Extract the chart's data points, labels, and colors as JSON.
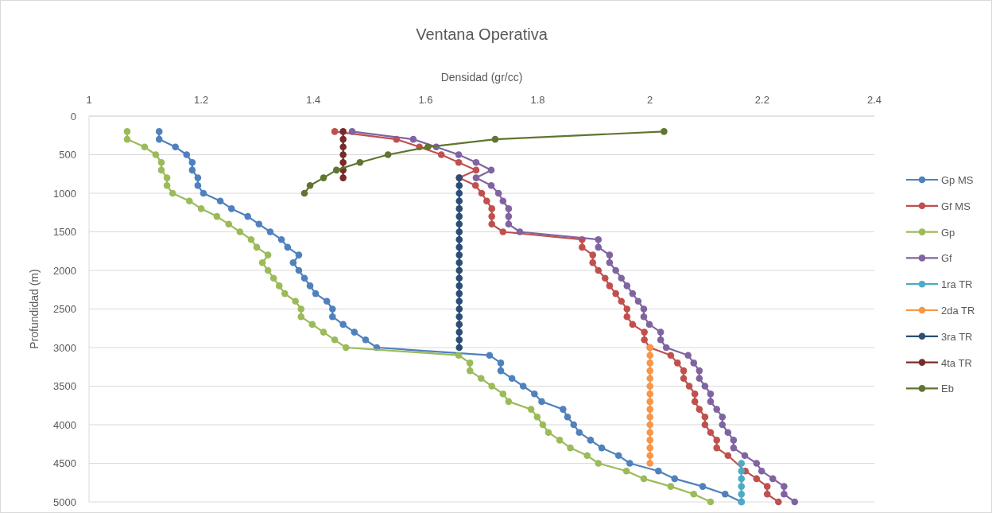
{
  "chart_data": {
    "type": "line",
    "title": "Ventana Operativa",
    "xlabel": "Densidad (gr/cc)",
    "ylabel": "Profundidad (m)",
    "xlim": [
      1,
      2.4
    ],
    "xticks": [
      1,
      1.2,
      1.4,
      1.6,
      1.8,
      2,
      2.2,
      2.4
    ],
    "ylim": [
      5000,
      0
    ],
    "yticks": [
      0,
      500,
      1000,
      1500,
      2000,
      2500,
      3000,
      3500,
      4000,
      4500,
      5000
    ],
    "grid": "y",
    "legend": "right",
    "marker": "circle",
    "line_style": "solid",
    "series": [
      {
        "name": "Gp MS",
        "color": "#4f81bd",
        "x": [
          1.125,
          1.125,
          1.154,
          1.174,
          1.184,
          1.184,
          1.194,
          1.194,
          1.204,
          1.234,
          1.254,
          1.283,
          1.303,
          1.323,
          1.343,
          1.354,
          1.374,
          1.364,
          1.374,
          1.384,
          1.394,
          1.404,
          1.424,
          1.434,
          1.434,
          1.453,
          1.473,
          1.493,
          1.513,
          1.714,
          1.734,
          1.734,
          1.754,
          1.774,
          1.794,
          1.807,
          1.845,
          1.853,
          1.864,
          1.874,
          1.894,
          1.914,
          1.944,
          1.964,
          2.015,
          2.044,
          2.094,
          2.134,
          2.163
        ],
        "values": [
          200,
          300,
          400,
          500,
          600,
          700,
          800,
          900,
          1000,
          1100,
          1200,
          1300,
          1400,
          1500,
          1600,
          1700,
          1800,
          1900,
          2000,
          2100,
          2200,
          2300,
          2400,
          2500,
          2600,
          2700,
          2800,
          2900,
          3000,
          3100,
          3200,
          3300,
          3400,
          3500,
          3600,
          3700,
          3800,
          3900,
          4000,
          4100,
          4200,
          4300,
          4400,
          4500,
          4600,
          4700,
          4800,
          4900,
          5000
        ]
      },
      {
        "name": "Gf MS",
        "color": "#c0504d",
        "x": [
          1.438,
          1.548,
          1.589,
          1.628,
          1.659,
          1.69,
          1.66,
          1.689,
          1.7,
          1.709,
          1.718,
          1.718,
          1.718,
          1.738,
          1.879,
          1.879,
          1.898,
          1.898,
          1.908,
          1.92,
          1.928,
          1.939,
          1.949,
          1.959,
          1.959,
          1.969,
          1.99,
          1.99,
          2.0,
          2.037,
          2.049,
          2.06,
          2.06,
          2.07,
          2.08,
          2.08,
          2.088,
          2.098,
          2.098,
          2.108,
          2.119,
          2.119,
          2.139,
          2.16,
          2.17,
          2.19,
          2.209,
          2.209,
          2.229
        ],
        "values": [
          200,
          300,
          400,
          500,
          600,
          700,
          800,
          900,
          1000,
          1100,
          1200,
          1300,
          1400,
          1500,
          1600,
          1700,
          1800,
          1900,
          2000,
          2100,
          2200,
          2300,
          2400,
          2500,
          2600,
          2700,
          2800,
          2900,
          3000,
          3100,
          3200,
          3300,
          3400,
          3500,
          3600,
          3700,
          3800,
          3900,
          4000,
          4100,
          4200,
          4300,
          4400,
          null,
          4600,
          4700,
          4800,
          4900,
          5000
        ]
      },
      {
        "name": "Gp",
        "color": "#9bbb59",
        "x": [
          1.068,
          1.068,
          1.099,
          1.119,
          1.129,
          1.129,
          1.139,
          1.139,
          1.149,
          1.179,
          1.2,
          1.228,
          1.249,
          1.269,
          1.289,
          1.299,
          1.319,
          1.309,
          1.319,
          1.329,
          1.339,
          1.349,
          1.368,
          1.378,
          1.378,
          1.398,
          1.418,
          1.438,
          1.458,
          1.659,
          1.679,
          1.679,
          1.699,
          1.718,
          1.738,
          1.748,
          1.788,
          1.799,
          1.809,
          1.819,
          1.839,
          1.858,
          1.888,
          1.908,
          1.958,
          1.989,
          2.037,
          2.078,
          2.108
        ],
        "values": [
          200,
          300,
          400,
          500,
          600,
          700,
          800,
          900,
          1000,
          1100,
          1200,
          1300,
          1400,
          1500,
          1600,
          1700,
          1800,
          1900,
          2000,
          2100,
          2200,
          2300,
          2400,
          2500,
          2600,
          2700,
          2800,
          2900,
          3000,
          3100,
          3200,
          3300,
          3400,
          3500,
          3600,
          3700,
          3800,
          3900,
          4000,
          4100,
          4200,
          4300,
          4400,
          4500,
          4600,
          4700,
          4800,
          4900,
          5000
        ]
      },
      {
        "name": "Gf",
        "color": "#8064a2",
        "x": [
          1.469,
          1.578,
          1.619,
          1.659,
          1.69,
          1.717,
          1.69,
          1.717,
          1.73,
          1.738,
          1.748,
          1.748,
          1.748,
          1.768,
          1.908,
          1.908,
          1.928,
          1.928,
          1.939,
          1.949,
          1.959,
          1.969,
          1.979,
          1.989,
          1.989,
          1.999,
          2.019,
          2.019,
          2.029,
          2.068,
          2.078,
          2.088,
          2.088,
          2.098,
          2.108,
          2.108,
          2.119,
          2.129,
          2.129,
          2.139,
          2.149,
          2.149,
          2.169,
          2.19,
          2.199,
          2.219,
          2.239,
          2.239,
          2.258
        ],
        "values": [
          200,
          300,
          400,
          500,
          600,
          700,
          800,
          900,
          1000,
          1100,
          1200,
          1300,
          1400,
          1500,
          1600,
          1700,
          1800,
          1900,
          2000,
          2100,
          2200,
          2300,
          2400,
          2500,
          2600,
          2700,
          2800,
          2900,
          3000,
          3100,
          3200,
          3300,
          3400,
          3500,
          3600,
          3700,
          3800,
          3900,
          4000,
          4100,
          4200,
          4300,
          4400,
          4500,
          4600,
          4700,
          4800,
          4900,
          5000
        ]
      },
      {
        "name": "1ra TR",
        "color": "#4bacc6",
        "x": [
          2.163,
          2.163,
          2.163,
          2.163,
          2.163,
          2.163
        ],
        "values": [
          4500,
          4600,
          4700,
          4800,
          4900,
          5000
        ]
      },
      {
        "name": "2da TR",
        "color": "#f79646",
        "x": [
          2.0,
          2.0,
          2.0,
          2.0,
          2.0,
          2.0,
          2.0,
          2.0,
          2.0,
          2.0,
          2.0,
          2.0,
          2.0,
          2.0,
          2.0,
          2.0
        ],
        "values": [
          3000,
          3100,
          3200,
          3300,
          3400,
          3500,
          3600,
          3700,
          3800,
          3900,
          4000,
          4100,
          4200,
          4300,
          4400,
          4500
        ]
      },
      {
        "name": "3ra TR",
        "color": "#2c4d75",
        "x": [
          1.66,
          1.66,
          1.66,
          1.66,
          1.66,
          1.66,
          1.66,
          1.66,
          1.66,
          1.66,
          1.66,
          1.66,
          1.66,
          1.66,
          1.66,
          1.66,
          1.66,
          1.66,
          1.66,
          1.66,
          1.66,
          1.66,
          1.66
        ],
        "values": [
          800,
          900,
          1000,
          1100,
          1200,
          1300,
          1400,
          1500,
          1600,
          1700,
          1800,
          1900,
          2000,
          2100,
          2200,
          2300,
          2400,
          2500,
          2600,
          2700,
          2800,
          2900,
          3000
        ]
      },
      {
        "name": "4ta TR",
        "color": "#772c2a",
        "x": [
          1.453,
          1.453,
          1.453,
          1.453,
          1.453,
          1.453,
          1.453
        ],
        "values": [
          200,
          300,
          400,
          500,
          600,
          700,
          800
        ]
      },
      {
        "name": "Eb",
        "color": "#5f7530",
        "x": [
          2.025,
          1.724,
          1.604,
          1.533,
          1.483,
          1.441,
          1.418,
          1.394,
          1.384
        ],
        "values": [
          200,
          300,
          400,
          500,
          600,
          700,
          800,
          900,
          1000
        ]
      }
    ]
  }
}
